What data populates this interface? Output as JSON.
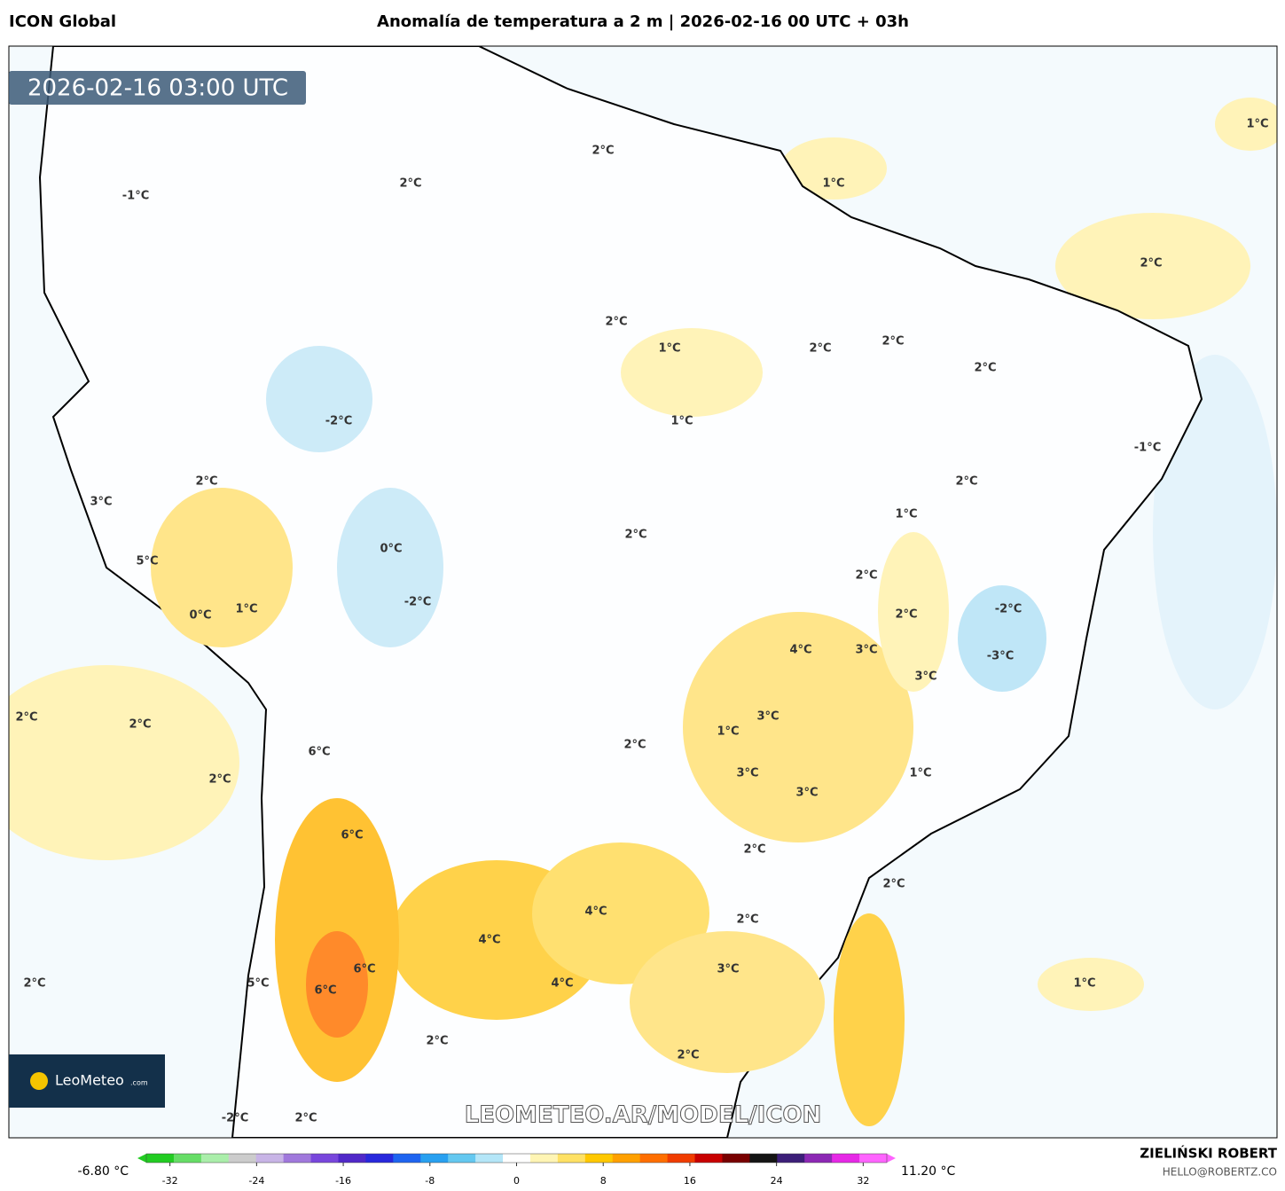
{
  "header": {
    "model": "ICON Global",
    "title": "Anomalía de temperatura a 2 m | 2026-02-16 00 UTC + 03h"
  },
  "map": {
    "timestamp": "2026-02-16 03:00 UTC",
    "watermark": "LEOMETEO.AR/MODEL/ICON",
    "logo": {
      "name": "LeoMeteo",
      "suffix": ".com"
    },
    "labels": [
      "1°C",
      "1°C",
      "2°C",
      "2°C",
      "-1°C",
      "2°C",
      "2°C",
      "1°C",
      "2°C",
      "2°C",
      "2°C",
      "-2°C",
      "1°C",
      "-1°C",
      "2°C",
      "2°C",
      "3°C",
      "1°C",
      "2°C",
      "0°C",
      "5°C",
      "2°C",
      "-2°C",
      "1°C",
      "-2°C",
      "0°C",
      "2°C",
      "4°C",
      "3°C",
      "-3°C",
      "3°C",
      "2°C",
      "2°C",
      "3°C",
      "1°C",
      "2°C",
      "6°C",
      "3°C",
      "1°C",
      "2°C",
      "3°C",
      "6°C",
      "2°C",
      "2°C",
      "4°C",
      "2°C",
      "4°C",
      "3°C",
      "6°C",
      "2°C",
      "5°C",
      "4°C",
      "1°C",
      "6°C",
      "2°C",
      "2°C",
      "-2°C",
      "2°C"
    ]
  },
  "colorbar": {
    "min_label": "-6.80 °C",
    "max_label": "11.20 °C",
    "lim": [
      -35,
      35
    ],
    "ticks": [
      -32,
      -24,
      -16,
      -8,
      0,
      8,
      16,
      24,
      32
    ],
    "colors": [
      "#22cc22",
      "#66dd66",
      "#aaeeaa",
      "#cccccc",
      "#c8b4e6",
      "#a078dc",
      "#7846dc",
      "#5028c8",
      "#2828dc",
      "#1e64f0",
      "#28a0f0",
      "#64c8f0",
      "#b4e6f8",
      "#ffffff",
      "#fff5b4",
      "#ffe164",
      "#ffc800",
      "#ffa000",
      "#ff6e00",
      "#f03c00",
      "#c80000",
      "#780000",
      "#141414",
      "#3c1e78",
      "#8c28b4",
      "#e628e6",
      "#ff64ff"
    ]
  },
  "credits": {
    "author": "ZIELIŃSKI ROBERT",
    "email": "HELLO@ROBERTZ.CO"
  }
}
